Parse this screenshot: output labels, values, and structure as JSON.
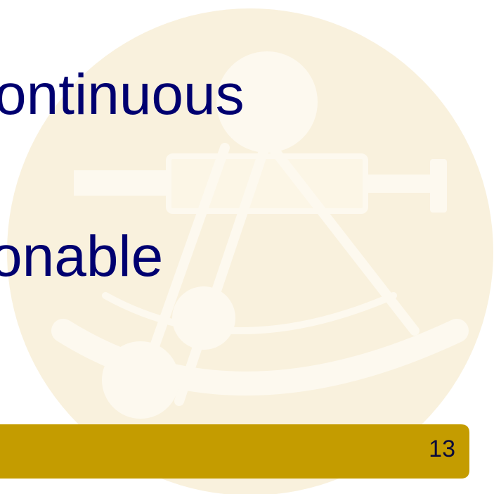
{
  "slide": {
    "lines": [
      "ontinuous",
      "onable"
    ],
    "page_number": 13
  }
}
